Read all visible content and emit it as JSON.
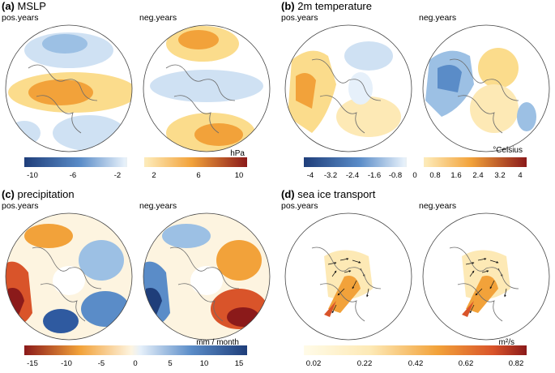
{
  "panels": {
    "a": {
      "tag": "(a)",
      "title": "MSLP",
      "pos_label": "pos.years",
      "neg_label": "neg.years",
      "unit": "hPa",
      "ticks": [
        "-10",
        "-6",
        "-2",
        "2",
        "6",
        "10"
      ]
    },
    "b": {
      "tag": "(b)",
      "title": "2m temperature",
      "pos_label": "pos.years",
      "neg_label": "neg.years",
      "unit": "°Celsius",
      "ticks": [
        "-4",
        "-3.2",
        "-2.4",
        "-1.6",
        "-0.8",
        "0",
        "0.8",
        "1.6",
        "2.4",
        "3.2",
        "4"
      ]
    },
    "c": {
      "tag": "(c)",
      "title": "precipitation",
      "pos_label": "pos.years",
      "neg_label": "neg.years",
      "unit": "mm / month",
      "ticks": [
        "-15",
        "-10",
        "-5",
        "0",
        "5",
        "10",
        "15"
      ]
    },
    "d": {
      "tag": "(d)",
      "title": "sea ice transport",
      "pos_label": "pos.years",
      "neg_label": "neg.years",
      "unit": "m²/s",
      "ticks": [
        "0.02",
        "0.22",
        "0.42",
        "0.62",
        "0.82"
      ]
    }
  },
  "colors": {
    "blue_dark": "#1f3e7a",
    "blue_mid": "#5a8cc8",
    "blue_light": "#cfe1f3",
    "orange_light": "#fbdc8c",
    "orange_mid": "#f2a23a",
    "red_dark": "#8b1a1a",
    "land_line": "#6a6a6a"
  }
}
